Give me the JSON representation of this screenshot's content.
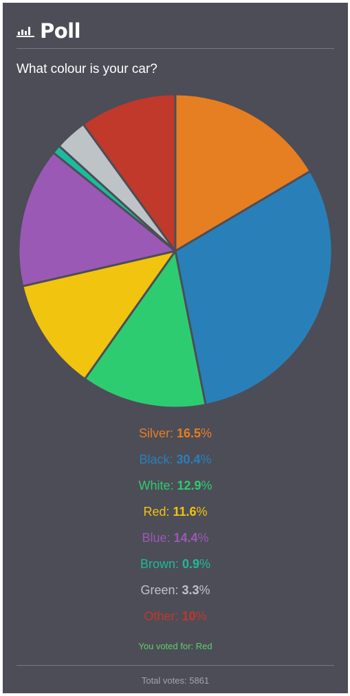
{
  "poll": {
    "title": "Poll",
    "question": "What colour is your car?",
    "voted_for": "You voted for: Red",
    "total_votes": "Total votes: 5861"
  },
  "colors": {
    "background": "#4d4d57",
    "voted": "#5fcf6b",
    "slice_border": "#4d4d57"
  },
  "icons": {
    "header": "bar-chart-icon"
  },
  "chart_data": {
    "type": "pie",
    "title": "",
    "labels": [
      "Silver",
      "Black",
      "White",
      "Red",
      "Blue",
      "Brown",
      "Green",
      "Other"
    ],
    "values": [
      16.5,
      30.4,
      12.9,
      11.6,
      14.4,
      0.9,
      3.3,
      10
    ],
    "value_texts": [
      "16.5%",
      "30.4%",
      "12.9%",
      "11.6%",
      "14.4%",
      "0.9%",
      "3.3%",
      "10%"
    ],
    "colors": [
      "#e67e22",
      "#2980b9",
      "#2ecc71",
      "#f1c40f",
      "#9b59b6",
      "#1abc9c",
      "#bdc3c7",
      "#c0392b"
    ],
    "start": "12 o'clock",
    "direction": "clockwise"
  }
}
